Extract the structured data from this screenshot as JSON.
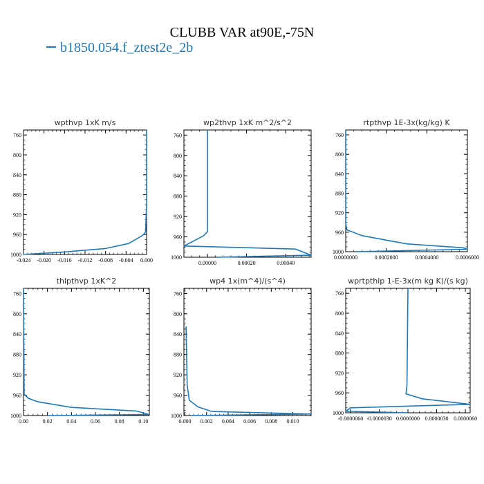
{
  "figure": {
    "title": "CLUBB VAR at90E,-75N",
    "legend_label": "b1850.054.f_ztest2e_2b",
    "line_color": "#1f77b4"
  },
  "chart_data": [
    {
      "type": "line",
      "title": "wpthvp   1xK m/s",
      "xlim": [
        -0.024,
        0.0
      ],
      "ylim": [
        1000,
        750
      ],
      "xticks": [
        -0.024,
        -0.02,
        -0.016,
        -0.012,
        -0.008,
        -0.004,
        0.0
      ],
      "xtick_labels": [
        "-0.024",
        "-0.020",
        "-0.016",
        "-0.012",
        "-0.008",
        "-0.004",
        "0.000"
      ],
      "yticks": [
        760,
        800,
        840,
        880,
        920,
        960,
        1000
      ],
      "ytick_labels": [
        "760",
        "800",
        "840",
        "880",
        "920",
        "960",
        "1000"
      ],
      "series": [
        {
          "values": [
            {
              "x": 0.0,
              "y": 750
            },
            {
              "x": 0.0,
              "y": 900
            },
            {
              "x": -0.0002,
              "y": 955
            },
            {
              "x": -0.0008,
              "y": 962
            },
            {
              "x": -0.0035,
              "y": 978
            },
            {
              "x": -0.008,
              "y": 988
            },
            {
              "x": -0.016,
              "y": 995
            },
            {
              "x": -0.024,
              "y": 1000
            }
          ]
        }
      ]
    },
    {
      "type": "line",
      "title": "wp2thvp   1xK m^2/s^2",
      "xlim": [
        -0.00012,
        0.00053
      ],
      "ylim": [
        1000,
        750
      ],
      "xticks": [
        0.0,
        0.0002,
        0.0004
      ],
      "xtick_labels": [
        "0.00000",
        "0.00020",
        "0.00040"
      ],
      "yticks": [
        760,
        800,
        840,
        880,
        920,
        960,
        1000
      ],
      "ytick_labels": [
        "760",
        "800",
        "840",
        "880",
        "920",
        "960",
        "1000"
      ],
      "series": [
        {
          "values": [
            {
              "x": 0.0,
              "y": 750
            },
            {
              "x": 0.0,
              "y": 950
            },
            {
              "x": -2e-05,
              "y": 958
            },
            {
              "x": -0.00012,
              "y": 978
            },
            {
              "x": 0.00045,
              "y": 984
            },
            {
              "x": 0.00053,
              "y": 996
            },
            {
              "x": 5e-05,
              "y": 1000
            }
          ]
        }
      ]
    },
    {
      "type": "line",
      "title": "rtpthvp   1E-3x(kg/kg) K",
      "xlim": [
        0.0,
        0.0006
      ],
      "ylim": [
        1000,
        750
      ],
      "xticks": [
        0.0,
        0.0002,
        0.0004,
        0.0006
      ],
      "xtick_labels": [
        "0.0000000",
        "0.0002000",
        "0.0004000",
        "0.0006000"
      ],
      "yticks": [
        760,
        800,
        840,
        880,
        920,
        960,
        1000
      ],
      "ytick_labels": [
        "760",
        "800",
        "840",
        "880",
        "920",
        "960",
        "1000"
      ],
      "series": [
        {
          "values": [
            {
              "x": 0.0,
              "y": 750
            },
            {
              "x": 0.0,
              "y": 940
            },
            {
              "x": 5e-06,
              "y": 955
            },
            {
              "x": 8e-05,
              "y": 967
            },
            {
              "x": 0.0003,
              "y": 984
            },
            {
              "x": 0.00058,
              "y": 992
            },
            {
              "x": 0.0006,
              "y": 995
            },
            {
              "x": 5e-05,
              "y": 1000
            }
          ]
        }
      ]
    },
    {
      "type": "line",
      "title": "thlpthvp   1xK^2",
      "xlim": [
        0.0,
        0.105
      ],
      "ylim": [
        1000,
        750
      ],
      "xticks": [
        0.0,
        0.02,
        0.04,
        0.06,
        0.08,
        0.1
      ],
      "xtick_labels": [
        "0.00",
        "0.02",
        "0.04",
        "0.06",
        "0.08",
        "0.10"
      ],
      "yticks": [
        760,
        800,
        840,
        880,
        920,
        960,
        1000
      ],
      "ytick_labels": [
        "760",
        "800",
        "840",
        "880",
        "920",
        "960",
        "1000"
      ],
      "series": [
        {
          "values": [
            {
              "x": 0.0,
              "y": 750
            },
            {
              "x": 0.0005,
              "y": 958
            },
            {
              "x": 0.004,
              "y": 966
            },
            {
              "x": 0.012,
              "y": 973
            },
            {
              "x": 0.04,
              "y": 984
            },
            {
              "x": 0.094,
              "y": 991
            },
            {
              "x": 0.105,
              "y": 998
            },
            {
              "x": 0.02,
              "y": 1000
            }
          ]
        }
      ]
    },
    {
      "type": "line",
      "title": "wp4   1x(m^4)/(s^4)",
      "xlim": [
        -0.0001,
        0.0117
      ],
      "ylim": [
        1000,
        750
      ],
      "xticks": [
        0.0,
        0.002,
        0.004,
        0.006,
        0.008,
        0.01
      ],
      "xtick_labels": [
        "0.000",
        "0.002",
        "0.004",
        "0.006",
        "0.008",
        "0.010"
      ],
      "yticks": [
        760,
        800,
        840,
        880,
        920,
        960,
        1000
      ],
      "ytick_labels": [
        "760",
        "800",
        "840",
        "880",
        "920",
        "960",
        "1000"
      ],
      "series": [
        {
          "values": [
            {
              "x": 0.0001,
              "y": 825
            },
            {
              "x": 0.0002,
              "y": 940
            },
            {
              "x": 0.0004,
              "y": 970
            },
            {
              "x": 0.0012,
              "y": 983
            },
            {
              "x": 0.0025,
              "y": 992
            },
            {
              "x": 0.0117,
              "y": 997
            },
            {
              "x": 0.0005,
              "y": 1000
            }
          ]
        }
      ]
    },
    {
      "type": "line",
      "title": "wprtpthlp   1-E-3x(m kg K)/(s kg)",
      "xlim": [
        -6.5e-06,
        6.5e-06
      ],
      "ylim": [
        1000,
        750
      ],
      "xticks": [
        -6e-06,
        -3e-06,
        0.0,
        3e-06,
        6e-06
      ],
      "xtick_labels": [
        "-0.0000060",
        "-0.0000030",
        "0.0000000",
        "0.0000030",
        "0.0000060"
      ],
      "yticks": [
        760,
        800,
        840,
        880,
        920,
        960,
        1000
      ],
      "ytick_labels": [
        "760",
        "800",
        "840",
        "880",
        "920",
        "960",
        "1000"
      ],
      "series": [
        {
          "values": [
            {
              "x": 0.0,
              "y": 750
            },
            {
              "x": -1e-07,
              "y": 945
            },
            {
              "x": -2e-07,
              "y": 962
            },
            {
              "x": 1.5e-06,
              "y": 972
            },
            {
              "x": 6.5e-06,
              "y": 983
            },
            {
              "x": -6e-06,
              "y": 990
            },
            {
              "x": -6.5e-06,
              "y": 997
            },
            {
              "x": 0.0,
              "y": 1000
            }
          ]
        }
      ]
    }
  ]
}
